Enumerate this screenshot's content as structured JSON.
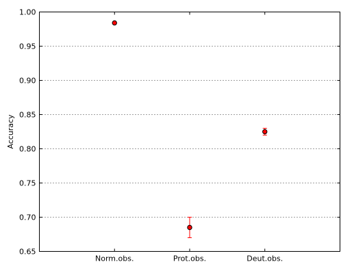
{
  "chart_data": {
    "type": "scatter",
    "categories": [
      "Norm.obs.",
      "Prot.obs.",
      "Deut.obs."
    ],
    "series": [
      {
        "values": [
          0.984,
          0.685,
          0.825
        ],
        "err_low": [
          0.983,
          0.67,
          0.82
        ],
        "err_high": [
          0.985,
          0.7,
          0.83
        ]
      }
    ],
    "xlabel": "",
    "ylabel": "Accuracy",
    "ylim": [
      0.65,
      1.0
    ],
    "yticks": [
      0.65,
      0.7,
      0.75,
      0.8,
      0.85,
      0.9,
      0.95,
      1.0
    ],
    "ytick_labels": [
      "0.65",
      "0.70",
      "0.75",
      "0.80",
      "0.85",
      "0.90",
      "0.95",
      "1.00"
    ],
    "grid": "horizontal-dotted",
    "colors": {
      "marker_fill": "#ff0000",
      "marker_edge": "#000000",
      "errorbar": "#ff0000",
      "grid": "#000000"
    }
  }
}
